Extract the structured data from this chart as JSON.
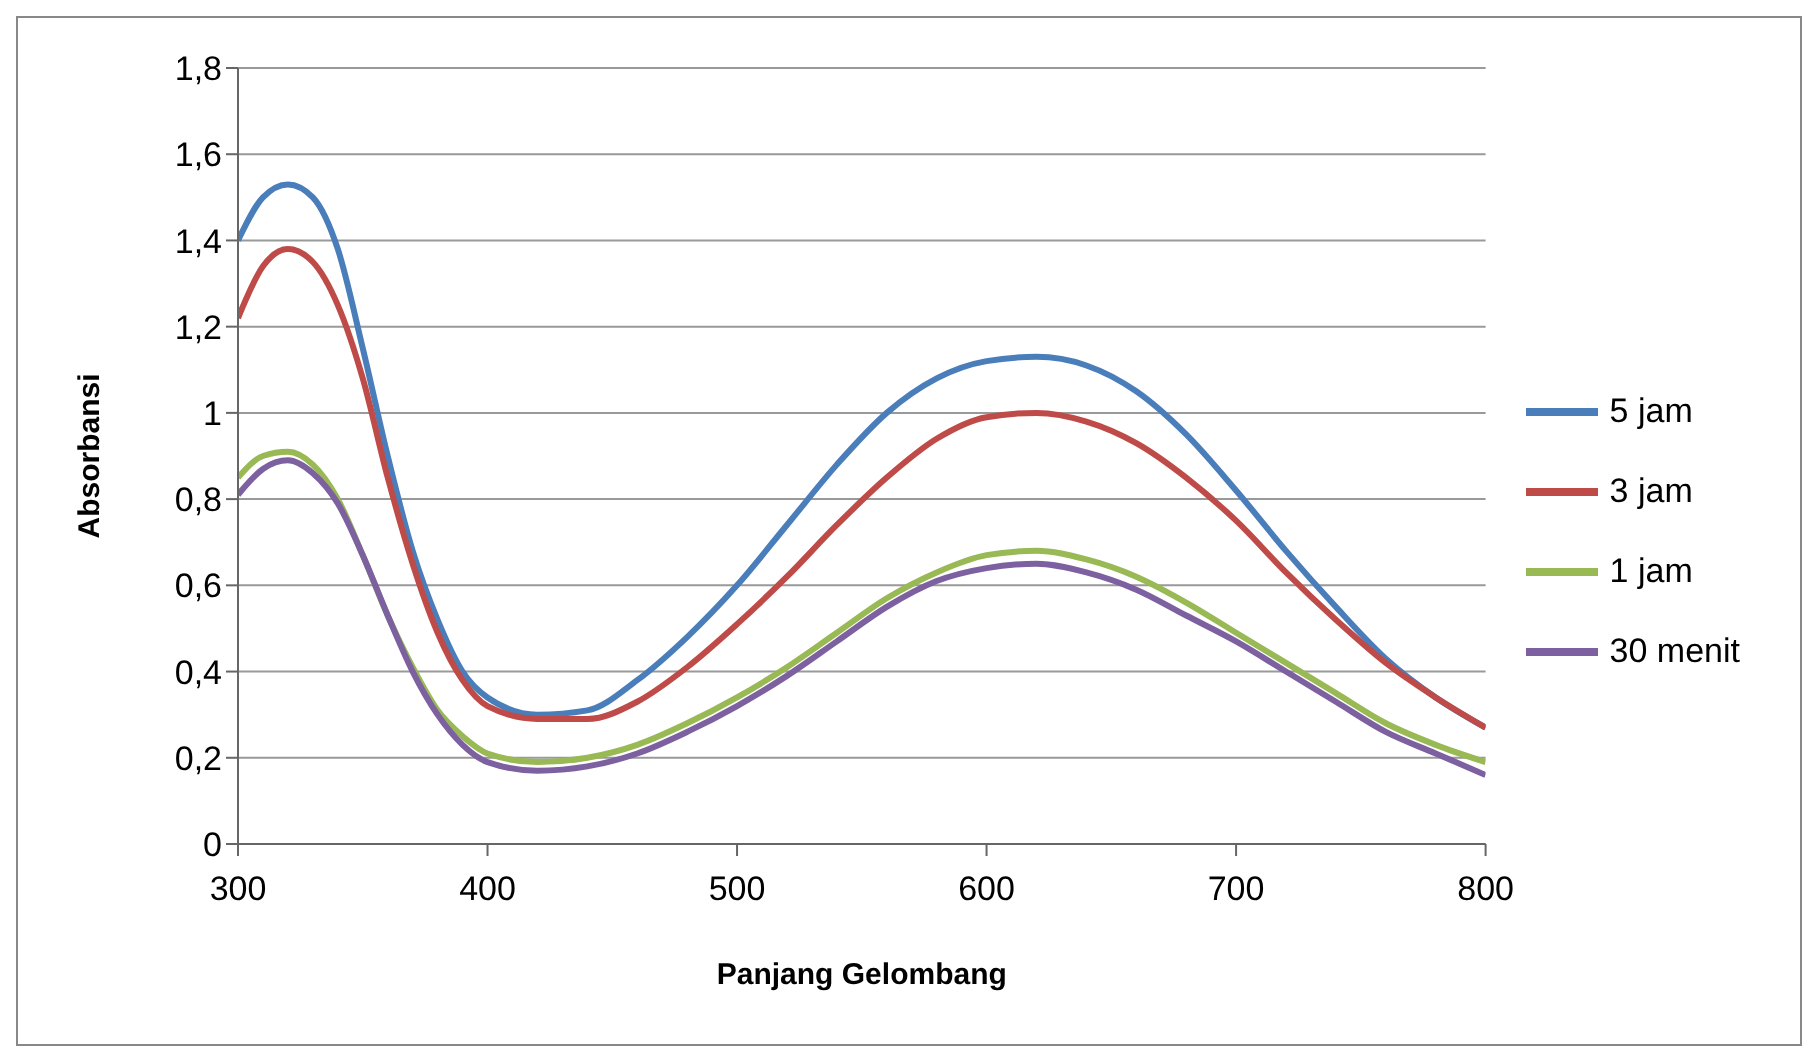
{
  "chart_data": {
    "type": "line",
    "xlabel": "Panjang Gelombang",
    "ylabel": "Absorbansi",
    "x": [
      300,
      310,
      320,
      330,
      340,
      350,
      360,
      370,
      380,
      390,
      400,
      420,
      440,
      460,
      480,
      500,
      520,
      540,
      560,
      580,
      600,
      620,
      640,
      660,
      680,
      700,
      720,
      740,
      760,
      780,
      800
    ],
    "series": [
      {
        "name": "5 jam",
        "color": "#4a7ebb",
        "values": [
          1.4,
          1.5,
          1.53,
          1.5,
          1.38,
          1.15,
          0.9,
          0.68,
          0.52,
          0.4,
          0.34,
          0.3,
          0.31,
          0.38,
          0.48,
          0.6,
          0.74,
          0.88,
          1.0,
          1.08,
          1.12,
          1.13,
          1.11,
          1.05,
          0.95,
          0.82,
          0.68,
          0.55,
          0.43,
          0.34,
          0.27
        ]
      },
      {
        "name": "3 jam",
        "color": "#be4b48",
        "values": [
          1.22,
          1.34,
          1.38,
          1.35,
          1.25,
          1.08,
          0.85,
          0.65,
          0.49,
          0.38,
          0.32,
          0.29,
          0.29,
          0.33,
          0.41,
          0.51,
          0.62,
          0.74,
          0.85,
          0.94,
          0.99,
          1.0,
          0.98,
          0.93,
          0.85,
          0.75,
          0.63,
          0.52,
          0.42,
          0.34,
          0.27
        ]
      },
      {
        "name": "1 jam",
        "color": "#98b954",
        "values": [
          0.85,
          0.9,
          0.91,
          0.88,
          0.8,
          0.67,
          0.53,
          0.41,
          0.31,
          0.25,
          0.21,
          0.19,
          0.2,
          0.23,
          0.28,
          0.34,
          0.41,
          0.49,
          0.57,
          0.63,
          0.67,
          0.68,
          0.66,
          0.62,
          0.56,
          0.49,
          0.42,
          0.35,
          0.28,
          0.23,
          0.19
        ]
      },
      {
        "name": "30 menit",
        "color": "#7d60a0",
        "values": [
          0.81,
          0.87,
          0.89,
          0.86,
          0.79,
          0.67,
          0.53,
          0.4,
          0.3,
          0.23,
          0.19,
          0.17,
          0.18,
          0.21,
          0.26,
          0.32,
          0.39,
          0.47,
          0.55,
          0.61,
          0.64,
          0.65,
          0.63,
          0.59,
          0.53,
          0.47,
          0.4,
          0.33,
          0.26,
          0.21,
          0.16
        ]
      }
    ],
    "xlim": [
      300,
      800
    ],
    "xticks": [
      300,
      400,
      500,
      600,
      700,
      800
    ],
    "ylim": [
      0,
      1.8
    ],
    "yticks": [
      0,
      {
        "value": 0.2,
        "label": "0,2"
      },
      {
        "value": 0.4,
        "label": "0,4"
      },
      {
        "value": 0.6,
        "label": "0,6"
      },
      {
        "value": 0.8,
        "label": "0,8"
      },
      1,
      {
        "value": 1.2,
        "label": "1,2"
      },
      {
        "value": 1.4,
        "label": "1,4"
      },
      {
        "value": 1.6,
        "label": "1,6"
      },
      {
        "value": 1.8,
        "label": "1,8"
      }
    ],
    "grid": "y",
    "legend": "right",
    "marker": "none",
    "line_style": "solid"
  }
}
